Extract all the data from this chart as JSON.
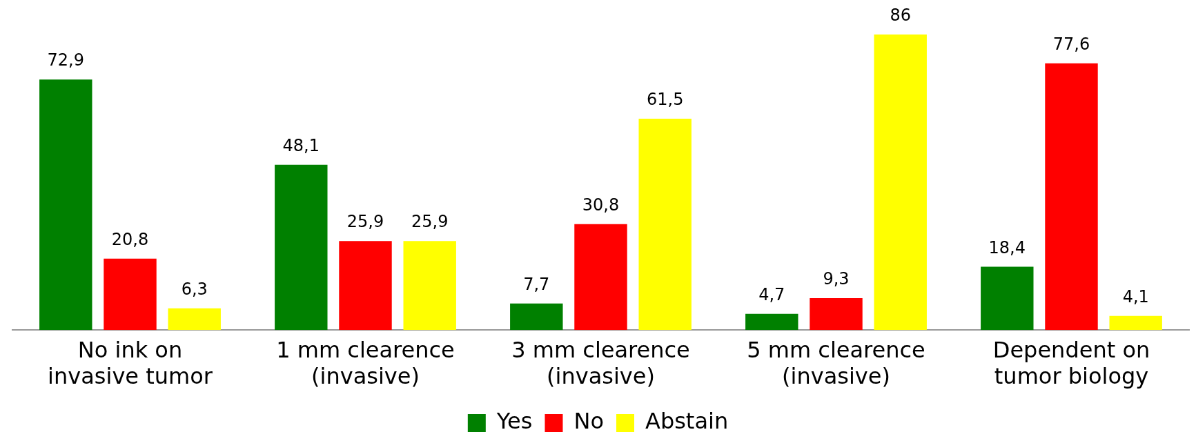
{
  "chart_data": {
    "type": "bar",
    "categories": [
      "No ink on\ninvasive tumor",
      "1 mm clearence\n(invasive)",
      "3 mm clearence\n(invasive)",
      "5 mm clearence\n(invasive)",
      "Dependent on\ntumor biology"
    ],
    "series": [
      {
        "name": "Yes",
        "color": "#008000",
        "values": [
          72.9,
          48.1,
          7.7,
          4.7,
          18.4
        ],
        "value_labels": [
          "72,9",
          "48,1",
          "7,7",
          "4,7",
          "18,4"
        ]
      },
      {
        "name": "No",
        "color": "#ff0000",
        "values": [
          20.8,
          25.9,
          30.8,
          9.3,
          77.6
        ],
        "value_labels": [
          "20,8",
          "25,9",
          "30,8",
          "9,3",
          "77,6"
        ]
      },
      {
        "name": "Abstain",
        "color": "#ffff00",
        "values": [
          6.3,
          25.9,
          61.5,
          86,
          4.1
        ],
        "value_labels": [
          "6,3",
          "25,9",
          "61,5",
          "86",
          "4,1"
        ]
      }
    ],
    "ylim": [
      0,
      86
    ],
    "relative": false,
    "grid": false,
    "legend": "bottom"
  }
}
